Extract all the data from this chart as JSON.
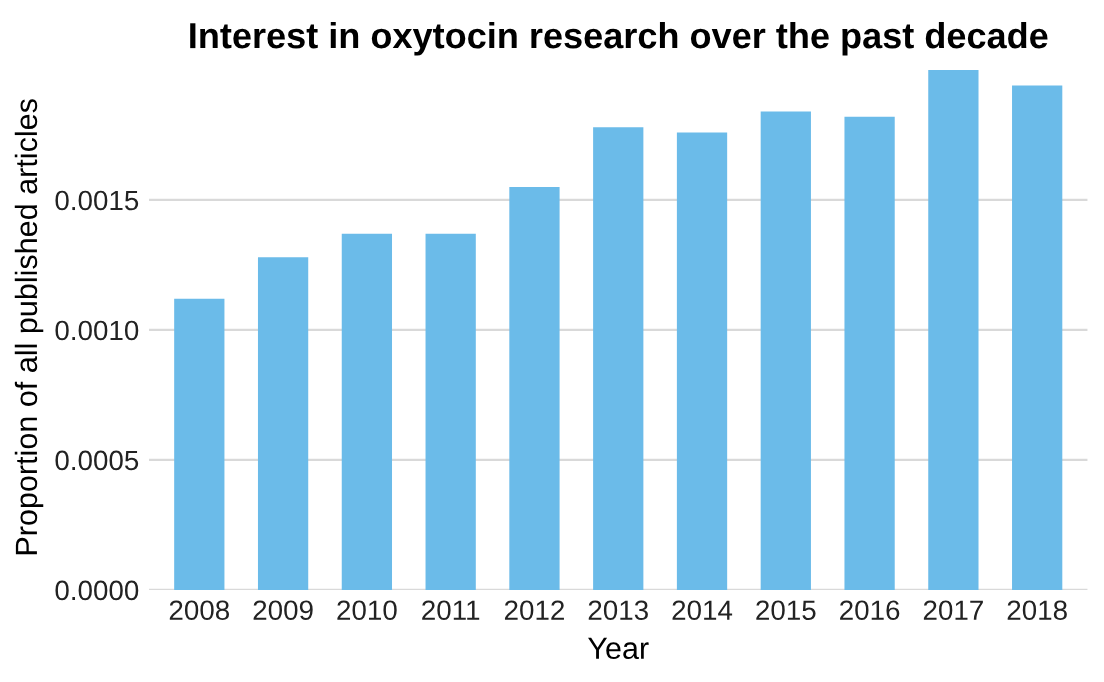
{
  "chart_data": {
    "type": "bar",
    "title": "Interest in oxytocin research over the past decade",
    "xlabel": "Year",
    "ylabel": "Proportion of all published articles",
    "categories": [
      "2008",
      "2009",
      "2010",
      "2011",
      "2012",
      "2013",
      "2014",
      "2015",
      "2016",
      "2017",
      "2018"
    ],
    "values": [
      0.00112,
      0.00128,
      0.00137,
      0.00137,
      0.00155,
      0.00178,
      0.00176,
      0.00184,
      0.00182,
      0.002,
      0.00194
    ],
    "color": "#6bbbe9",
    "ylim": [
      0,
      0.00202
    ],
    "yticks": [
      {
        "value": 0,
        "label": "0.0000"
      },
      {
        "value": 0.0005,
        "label": "0.0005"
      },
      {
        "value": 0.001,
        "label": "0.0010"
      },
      {
        "value": 0.0015,
        "label": "0.0015"
      }
    ],
    "grid": "y"
  }
}
